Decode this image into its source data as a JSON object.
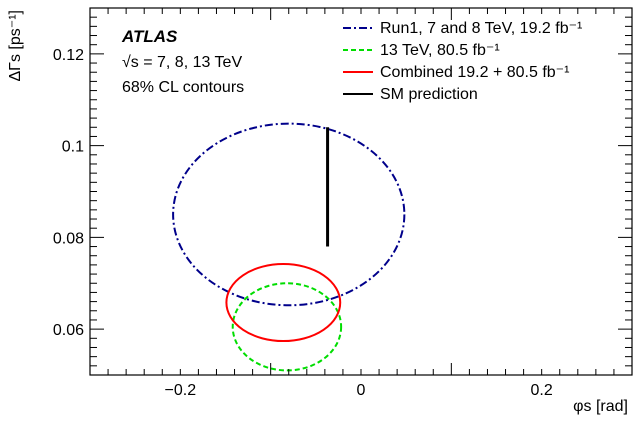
{
  "chart_data": {
    "type": "contour",
    "experiment": "ATLAS",
    "info_lines": [
      "√s = 7, 8, 13 TeV",
      "68% CL contours"
    ],
    "xlabel": "φs [rad]",
    "ylabel": "ΔΓs [ps⁻¹]",
    "xlim": [
      -0.3,
      0.3
    ],
    "ylim": [
      0.05,
      0.13
    ],
    "xticks": [
      -0.2,
      0,
      0.2
    ],
    "yticks": [
      0.06,
      0.08,
      0.1,
      0.12
    ],
    "xtick_labels": [
      "−0.2",
      "0",
      "0.2"
    ],
    "ytick_labels": [
      "0.06",
      "0.08",
      "0.1",
      "0.12"
    ],
    "legend_position": "top-right",
    "series": [
      {
        "name": "Run1, 7 and 8 TeV, 19.2 fb⁻¹",
        "style": "dash-dot",
        "color": "#00008b",
        "center": [
          -0.08,
          0.085
        ],
        "half_width_x": 0.128,
        "half_height_y": 0.0198
      },
      {
        "name": "13 TeV, 80.5 fb⁻¹",
        "style": "dashed",
        "color": "#00dd00",
        "center": [
          -0.082,
          0.0605
        ],
        "half_width_x": 0.06,
        "half_height_y": 0.0095
      },
      {
        "name": "Combined 19.2 + 80.5 fb⁻¹",
        "style": "solid",
        "color": "#ff0000",
        "center": [
          -0.086,
          0.0658
        ],
        "half_width_x": 0.063,
        "half_height_y": 0.0084
      },
      {
        "name": "SM prediction",
        "style": "solid",
        "color": "#000000",
        "x": -0.037,
        "y_range": [
          0.078,
          0.104
        ]
      }
    ]
  }
}
